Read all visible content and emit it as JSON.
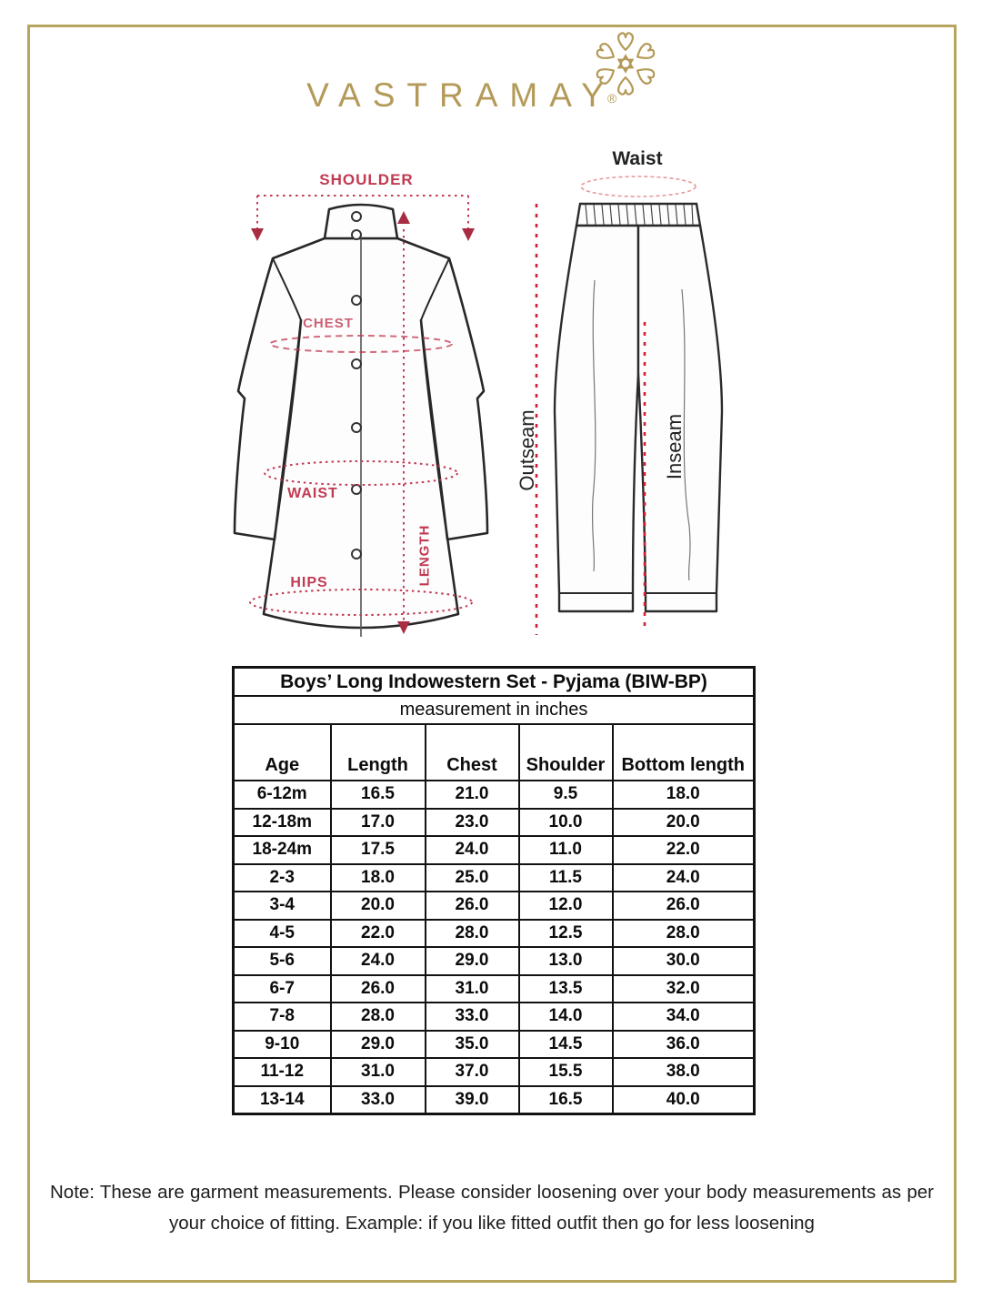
{
  "page": {
    "background": "#ffffff",
    "frame_color": "#b7a55e"
  },
  "brand": {
    "name": "VASTRAMAY",
    "registered_mark": "®",
    "gold": "#b49a58",
    "ornament_icon": "floral-mandala"
  },
  "diagrams": {
    "kurta": {
      "annotation_color": "#c13a52",
      "labels": {
        "shoulder": "SHOULDER",
        "chest": "CHEST",
        "waist": "WAIST",
        "hips": "HIPS",
        "length": "LENGTH"
      }
    },
    "pyjama": {
      "annotation_color": "#cc2233",
      "labels": {
        "waist": "Waist",
        "outseam": "Outseam",
        "inseam": "Inseam"
      }
    }
  },
  "size_chart": {
    "title": "Boys’ Long Indowestern Set - Pyjama (BIW-BP)",
    "subtitle": "measurement in inches",
    "columns": [
      "Age",
      "Length",
      "Chest",
      "Shoulder",
      "Bottom length"
    ],
    "rows": [
      [
        "6-12m",
        "16.5",
        "21.0",
        "9.5",
        "18.0"
      ],
      [
        "12-18m",
        "17.0",
        "23.0",
        "10.0",
        "20.0"
      ],
      [
        "18-24m",
        "17.5",
        "24.0",
        "11.0",
        "22.0"
      ],
      [
        "2-3",
        "18.0",
        "25.0",
        "11.5",
        "24.0"
      ],
      [
        "3-4",
        "20.0",
        "26.0",
        "12.0",
        "26.0"
      ],
      [
        "4-5",
        "22.0",
        "28.0",
        "12.5",
        "28.0"
      ],
      [
        "5-6",
        "24.0",
        "29.0",
        "13.0",
        "30.0"
      ],
      [
        "6-7",
        "26.0",
        "31.0",
        "13.5",
        "32.0"
      ],
      [
        "7-8",
        "28.0",
        "33.0",
        "14.0",
        "34.0"
      ],
      [
        "9-10",
        "29.0",
        "35.0",
        "14.5",
        "36.0"
      ],
      [
        "11-12",
        "31.0",
        "37.0",
        "15.5",
        "38.0"
      ],
      [
        "13-14",
        "33.0",
        "39.0",
        "16.5",
        "40.0"
      ]
    ]
  },
  "note": {
    "text": "Note: These are garment measurements. Please consider loosening over your body measurements as per your choice of fitting. Example: if you like fitted outfit then go for less loosening"
  }
}
